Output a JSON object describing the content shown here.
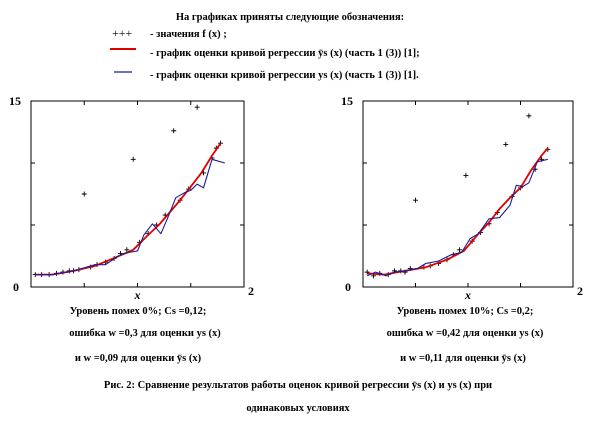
{
  "legend": {
    "heading": "На графиках приняты следующие обозначения:",
    "items": [
      {
        "marker": "+++",
        "text": "- значения  f (x) ;"
      },
      {
        "marker": "line",
        "color": "#e00000",
        "text": "- график оценки кривой регрессии  ȳs (x)  (часть 1 (3)) [1];"
      },
      {
        "marker": "line",
        "color": "#1a1a9a",
        "text": "- график оценки кривой регрессии  ys (x)  (часть 1 (3)) [1]."
      }
    ]
  },
  "panels": [
    {
      "cap1": "Уровень помех 0%;  Cs =0,12;",
      "cap2": "ошибка  w =0,3 для оценки  ys (x)",
      "cap3": "и  w =0,09  для оценки  ȳs (x)"
    },
    {
      "cap1": "Уровень помех 10%;  Cs =0,2;",
      "cap2": "ошибка  w =0,42 для оценки  ys (x)",
      "cap3": "и  w =0,11  для оценки  ȳs (x)"
    }
  ],
  "caption": {
    "line1": "Рис. 2: Сравнение результатов работы оценок кривой регрессии  ȳs (x)  и  ys (x)  при",
    "line2": "одинаковых условиях"
  },
  "chart_data": [
    {
      "type": "line",
      "xlabel": "x",
      "ylabel": "",
      "xlim": [
        0,
        2
      ],
      "ylim": [
        0,
        15
      ],
      "x_tick_labels": [
        "2"
      ],
      "y_tick_labels": [
        "0",
        "15"
      ],
      "grid": false,
      "series": [
        {
          "marker": "plus",
          "color": "#000000",
          "points": [
            [
              0.04,
              1.0
            ],
            [
              0.1,
              1.0
            ],
            [
              0.17,
              1.0
            ],
            [
              0.24,
              1.1
            ],
            [
              0.3,
              1.2
            ],
            [
              0.36,
              1.3
            ],
            [
              0.4,
              1.3
            ],
            [
              0.45,
              1.4
            ],
            [
              0.5,
              7.5
            ],
            [
              0.56,
              1.6
            ],
            [
              0.62,
              1.8
            ],
            [
              0.7,
              2.0
            ],
            [
              0.78,
              2.3
            ],
            [
              0.84,
              2.7
            ],
            [
              0.9,
              3.0
            ],
            [
              0.96,
              10.3
            ],
            [
              1.02,
              3.6
            ],
            [
              1.1,
              4.3
            ],
            [
              1.18,
              5.0
            ],
            [
              1.26,
              5.8
            ],
            [
              1.34,
              12.6
            ],
            [
              1.4,
              7.0
            ],
            [
              1.48,
              7.9
            ],
            [
              1.56,
              14.5
            ],
            [
              1.62,
              9.2
            ],
            [
              1.7,
              10.4
            ],
            [
              1.74,
              11.2
            ],
            [
              1.78,
              11.6
            ]
          ]
        },
        {
          "marker": "line",
          "color": "#e00000",
          "points": [
            [
              0.04,
              1.0
            ],
            [
              0.2,
              1.0
            ],
            [
              0.4,
              1.3
            ],
            [
              0.6,
              1.7
            ],
            [
              0.8,
              2.4
            ],
            [
              0.96,
              3.0
            ],
            [
              1.1,
              4.2
            ],
            [
              1.2,
              5.0
            ],
            [
              1.3,
              6.0
            ],
            [
              1.4,
              7.0
            ],
            [
              1.5,
              8.1
            ],
            [
              1.6,
              9.2
            ],
            [
              1.7,
              10.6
            ],
            [
              1.78,
              11.6
            ]
          ]
        },
        {
          "marker": "line",
          "color": "#1a1a9a",
          "points": [
            [
              0.04,
              1.0
            ],
            [
              0.2,
              1.0
            ],
            [
              0.4,
              1.3
            ],
            [
              0.6,
              1.8
            ],
            [
              0.7,
              1.8
            ],
            [
              0.82,
              2.5
            ],
            [
              0.92,
              2.8
            ],
            [
              1.0,
              2.9
            ],
            [
              1.06,
              4.2
            ],
            [
              1.14,
              5.1
            ],
            [
              1.22,
              4.3
            ],
            [
              1.28,
              5.5
            ],
            [
              1.36,
              7.2
            ],
            [
              1.44,
              7.6
            ],
            [
              1.5,
              7.8
            ],
            [
              1.56,
              8.3
            ],
            [
              1.62,
              8.0
            ],
            [
              1.7,
              10.3
            ],
            [
              1.82,
              10.0
            ]
          ]
        }
      ]
    },
    {
      "type": "line",
      "xlabel": "x",
      "ylabel": "",
      "xlim": [
        0,
        2
      ],
      "ylim": [
        0,
        15
      ],
      "x_tick_labels": [
        "2"
      ],
      "y_tick_labels": [
        "0",
        "15"
      ],
      "grid": false,
      "series": [
        {
          "marker": "plus",
          "color": "#000000",
          "points": [
            [
              0.04,
              1.2
            ],
            [
              0.1,
              0.9
            ],
            [
              0.16,
              1.1
            ],
            [
              0.24,
              1.0
            ],
            [
              0.3,
              1.3
            ],
            [
              0.36,
              1.3
            ],
            [
              0.4,
              1.2
            ],
            [
              0.45,
              1.5
            ],
            [
              0.5,
              7.0
            ],
            [
              0.58,
              1.6
            ],
            [
              0.64,
              1.7
            ],
            [
              0.72,
              1.9
            ],
            [
              0.8,
              2.2
            ],
            [
              0.86,
              2.6
            ],
            [
              0.92,
              3.0
            ],
            [
              0.98,
              9.0
            ],
            [
              1.04,
              3.7
            ],
            [
              1.12,
              4.4
            ],
            [
              1.2,
              5.1
            ],
            [
              1.28,
              6.0
            ],
            [
              1.36,
              11.5
            ],
            [
              1.42,
              7.3
            ],
            [
              1.5,
              8.0
            ],
            [
              1.58,
              13.8
            ],
            [
              1.64,
              9.5
            ],
            [
              1.7,
              10.3
            ],
            [
              1.76,
              11.1
            ]
          ]
        },
        {
          "marker": "line",
          "color": "#e00000",
          "points": [
            [
              0.04,
              1.1
            ],
            [
              0.2,
              1.0
            ],
            [
              0.4,
              1.3
            ],
            [
              0.6,
              1.6
            ],
            [
              0.8,
              2.2
            ],
            [
              0.96,
              2.9
            ],
            [
              1.1,
              4.3
            ],
            [
              1.2,
              5.2
            ],
            [
              1.3,
              6.3
            ],
            [
              1.4,
              7.2
            ],
            [
              1.5,
              8.0
            ],
            [
              1.6,
              9.4
            ],
            [
              1.7,
              10.6
            ],
            [
              1.76,
              11.2
            ]
          ]
        },
        {
          "marker": "line",
          "color": "#1a1a9a",
          "points": [
            [
              0.04,
              0.9
            ],
            [
              0.12,
              1.2
            ],
            [
              0.22,
              0.9
            ],
            [
              0.3,
              1.2
            ],
            [
              0.4,
              1.3
            ],
            [
              0.52,
              1.5
            ],
            [
              0.6,
              1.9
            ],
            [
              0.72,
              2.1
            ],
            [
              0.84,
              2.6
            ],
            [
              0.94,
              2.8
            ],
            [
              1.02,
              3.9
            ],
            [
              1.1,
              4.3
            ],
            [
              1.2,
              5.5
            ],
            [
              1.3,
              5.6
            ],
            [
              1.4,
              6.6
            ],
            [
              1.46,
              8.2
            ],
            [
              1.52,
              8.1
            ],
            [
              1.58,
              8.4
            ],
            [
              1.66,
              10.1
            ],
            [
              1.76,
              10.3
            ]
          ]
        }
      ]
    }
  ]
}
